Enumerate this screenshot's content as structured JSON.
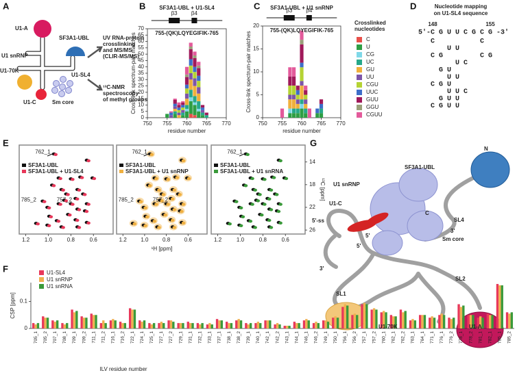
{
  "panel_labels": [
    "A",
    "B",
    "C",
    "D",
    "E",
    "F",
    "G"
  ],
  "panel_a": {
    "labels": [
      "U1-A",
      "U1 snRNP",
      "U1-70K",
      "U1-C",
      "Sm core",
      "SF3A1-UBL",
      "U1-SL4"
    ],
    "method_1": [
      "UV RNA-protein",
      "crosslinking",
      "and MS/MS",
      "(CLIR-MS/MS)"
    ],
    "method_2": [
      "¹³C-NMR",
      "spectroscopy",
      "of methyl groups"
    ]
  },
  "chart_data": [
    {
      "type": "bar",
      "stacked": true,
      "title": "SF3A1-UBL + U1-SL4",
      "annotations": [
        "β3",
        "β4",
        "755-(QK)LQYEGIFIK-765"
      ],
      "x_label": "residue number",
      "y_label": "Cross-link spectrum-pair matches",
      "x": [
        755,
        756,
        757,
        758,
        759,
        760,
        761,
        762,
        763,
        764,
        765
      ],
      "xlim": [
        750,
        770
      ],
      "xticks": [
        750,
        755,
        760,
        765,
        770
      ],
      "ylim": [
        0,
        70
      ],
      "yticks": [
        0,
        5,
        10,
        15,
        20,
        25,
        30,
        35,
        40,
        45,
        50,
        55,
        60,
        65,
        70
      ],
      "series": [
        {
          "color": "#e8504a",
          "values": [
            0,
            0,
            0,
            0,
            0,
            0,
            3,
            2,
            0,
            0,
            0
          ]
        },
        {
          "color": "#2e9e44",
          "values": [
            3,
            0,
            3,
            0,
            2,
            5,
            10,
            8,
            5,
            2,
            0
          ]
        },
        {
          "color": "#7fd8e8",
          "values": [
            0,
            0,
            0,
            0,
            0,
            2,
            3,
            2,
            2,
            0,
            0
          ]
        },
        {
          "color": "#26a88a",
          "values": [
            0,
            0,
            2,
            0,
            2,
            3,
            6,
            5,
            6,
            2,
            2
          ]
        },
        {
          "color": "#f0b03c",
          "values": [
            0,
            0,
            2,
            2,
            0,
            5,
            8,
            8,
            6,
            0,
            0
          ]
        },
        {
          "color": "#7d55a8",
          "values": [
            0,
            2,
            2,
            2,
            2,
            4,
            5,
            6,
            5,
            2,
            0
          ]
        },
        {
          "color": "#b5d334",
          "values": [
            0,
            0,
            0,
            2,
            2,
            4,
            6,
            5,
            5,
            0,
            0
          ]
        },
        {
          "color": "#3d6ec9",
          "values": [
            0,
            2,
            2,
            2,
            2,
            3,
            5,
            4,
            4,
            2,
            0
          ]
        },
        {
          "color": "#a0195a",
          "values": [
            0,
            0,
            3,
            2,
            2,
            6,
            8,
            7,
            6,
            2,
            2
          ]
        },
        {
          "color": "#9aa07a",
          "values": [
            0,
            0,
            0,
            0,
            0,
            2,
            2,
            2,
            2,
            0,
            0
          ]
        },
        {
          "color": "#e35a9b",
          "values": [
            0,
            1,
            1,
            2,
            1,
            6,
            3,
            3,
            3,
            0,
            0
          ]
        }
      ]
    },
    {
      "type": "bar",
      "stacked": true,
      "title": "SF3A1-UBL + U1 snRNP",
      "annotations": [
        "β3",
        "β4",
        "755-(QK)LQYEGIFIK-765"
      ],
      "x_label": "residue number",
      "y_label": "Cross-link spectrum-pair matches",
      "legend_title": [
        "Crosslinked",
        "nucleotides"
      ],
      "x": [
        755,
        756,
        757,
        758,
        759,
        760,
        761,
        762,
        763,
        764,
        765
      ],
      "xlim": [
        750,
        770
      ],
      "xticks": [
        750,
        755,
        760,
        765,
        770
      ],
      "ylim": [
        0,
        20
      ],
      "yticks": [
        0,
        5,
        10,
        15,
        20
      ],
      "series": [
        {
          "name": "C",
          "color": "#e8504a",
          "values": [
            0,
            0,
            0,
            0,
            0,
            0,
            0,
            0,
            0,
            0,
            0
          ]
        },
        {
          "name": "U",
          "color": "#2e9e44",
          "values": [
            0,
            0,
            1,
            1,
            1,
            2,
            1,
            0,
            0,
            1,
            1
          ]
        },
        {
          "name": "CG",
          "color": "#7fd8e8",
          "values": [
            0,
            0,
            1,
            0,
            0,
            1,
            0,
            0,
            0,
            0,
            0
          ]
        },
        {
          "name": "UC",
          "color": "#26a88a",
          "values": [
            0,
            0,
            0,
            1,
            1,
            1,
            1,
            0,
            0,
            0,
            1
          ]
        },
        {
          "name": "GU",
          "color": "#f0b03c",
          "values": [
            0,
            0,
            2,
            2,
            1,
            3,
            1,
            0,
            0,
            0,
            0
          ]
        },
        {
          "name": "UU",
          "color": "#7d55a8",
          "values": [
            0,
            0,
            1,
            1,
            1,
            1,
            1,
            0,
            0,
            0,
            0
          ]
        },
        {
          "name": "CGU",
          "color": "#b5d334",
          "values": [
            0,
            0,
            2,
            2,
            1,
            3,
            1,
            0,
            0,
            0,
            0
          ]
        },
        {
          "name": "UUC",
          "color": "#3d6ec9",
          "values": [
            0,
            0,
            0,
            0,
            1,
            1,
            0,
            0,
            0,
            1,
            1
          ]
        },
        {
          "name": "GUU",
          "color": "#a0195a",
          "values": [
            0,
            0,
            2,
            2,
            1,
            4,
            1,
            0,
            0,
            0,
            1
          ]
        },
        {
          "name": "GGU",
          "color": "#9aa07a",
          "values": [
            0,
            0,
            0,
            0,
            0,
            1,
            0,
            0,
            0,
            0,
            0
          ]
        },
        {
          "name": "CGUU",
          "color": "#e35a9b",
          "values": [
            2,
            0,
            2,
            2,
            0,
            2,
            1,
            2,
            0,
            0,
            0
          ]
        }
      ]
    },
    {
      "type": "bar",
      "stacked": false,
      "x_label": "ILV residue number",
      "y_label": "CSP [ppm]",
      "legend": "upper left",
      "categories": [
        "705_1",
        "705_2",
        "707_1",
        "708_1",
        "709_1",
        "709_2",
        "711_1",
        "711_2",
        "716_1",
        "716_2",
        "722_1",
        "724_1",
        "725_1",
        "727_1",
        "727_2",
        "729_1",
        "731_1",
        "732_1",
        "733_1",
        "737_1",
        "738_1",
        "738_2",
        "739_1",
        "740_1",
        "742_1",
        "742_2",
        "743_1",
        "744_1",
        "746_1",
        "746_2",
        "749_1",
        "750_1",
        "756_1",
        "756_2",
        "757_1",
        "757_2",
        "760_1",
        "762_1",
        "762_2",
        "763_1",
        "764_1",
        "771_1",
        "776_1",
        "776_2",
        "778_1",
        "778_2",
        "781_1",
        "782_1",
        "785_1",
        "785_2"
      ],
      "ylim": [
        0,
        0.17
      ],
      "yticks": [
        0,
        0.1
      ],
      "series": [
        {
          "name": "U1-SL4",
          "color": "#e8385a",
          "values": [
            0.02,
            0.045,
            0.03,
            0.02,
            0.07,
            0.045,
            0.055,
            0.02,
            0.03,
            0.025,
            0.075,
            0.03,
            0.02,
            0.02,
            0.03,
            0.02,
            0.025,
            0.02,
            0.015,
            0.035,
            0.025,
            0.03,
            0.02,
            0.02,
            0.03,
            0.015,
            0.01,
            0.025,
            0.03,
            0.02,
            0.03,
            0.04,
            0.08,
            0.05,
            0.09,
            0.07,
            0.06,
            0.05,
            0.07,
            0.03,
            0.05,
            0.04,
            0.05,
            0.04,
            0.09,
            0.05,
            0.04,
            0.055,
            0.165,
            0.06
          ]
        },
        {
          "name": "U1 snRNP",
          "color": "#f0b050",
          "values": [
            0.015,
            0.04,
            0.025,
            0.015,
            0.06,
            0.04,
            0.05,
            0.03,
            0.035,
            0.02,
            0.07,
            0.025,
            0.015,
            0.025,
            0.03,
            0.02,
            0.02,
            0.015,
            0.02,
            0.03,
            0.02,
            0.035,
            0.015,
            0.025,
            0.03,
            0.02,
            0.01,
            0.02,
            0.035,
            0.025,
            0.03,
            0.045,
            0.09,
            0.055,
            0.095,
            0.075,
            0.065,
            0.045,
            0.06,
            0.035,
            0.05,
            0.045,
            0.055,
            0.035,
            0.08,
            0.05,
            0.045,
            0.05,
            0.16,
            0.055
          ]
        },
        {
          "name": "U1 snRNA",
          "color": "#3a9a3a",
          "values": [
            0.02,
            0.04,
            0.03,
            0.02,
            0.065,
            0.04,
            0.05,
            0.02,
            0.03,
            0.02,
            0.07,
            0.03,
            0.02,
            0.02,
            0.025,
            0.02,
            0.02,
            0.02,
            0.015,
            0.03,
            0.02,
            0.03,
            0.02,
            0.02,
            0.03,
            0.015,
            0.01,
            0.02,
            0.03,
            0.02,
            0.025,
            0.04,
            0.085,
            0.05,
            0.09,
            0.07,
            0.06,
            0.045,
            0.065,
            0.03,
            0.05,
            0.04,
            0.05,
            0.04,
            0.085,
            0.05,
            0.04,
            0.05,
            0.16,
            0.06
          ]
        }
      ]
    }
  ],
  "panel_d": {
    "title": [
      "Nucleotide mapping",
      "on U1-SL4 sequence"
    ],
    "positions": [
      "148",
      "155"
    ],
    "sequence": "5'-C G U U C G C G -3'",
    "rows": [
      {
        "text": "   C           C",
        "color": "#e8504a"
      },
      {
        "text": "       U U",
        "color": "#2e9e44"
      },
      {
        "text": "   C G         C G",
        "color": "#7fd8e8"
      },
      {
        "text": "         U C",
        "color": "#26a88a"
      },
      {
        "text": "     G U",
        "color": "#f0b03c"
      },
      {
        "text": "       U U",
        "color": "#7d55a8"
      },
      {
        "text": "   C G U",
        "color": "#b5d334"
      },
      {
        "text": "       U U C",
        "color": "#3d6ec9"
      },
      {
        "text": "     G U U",
        "color": "#a0195a"
      },
      {
        "text": "   C G U U",
        "color": "#e35a9b"
      }
    ]
  },
  "panel_e": {
    "panels": [
      {
        "color": "#e8385a",
        "legend": [
          "SF3A1-UBL",
          "SF3A1-UBL + U1-SL4"
        ],
        "peak_labels": [
          "762_1",
          "785_2",
          "757_2"
        ],
        "x_ticks": [
          "1.2",
          "1.0",
          "0.8",
          "0.6"
        ]
      },
      {
        "color": "#f0b040",
        "legend": [
          "SF3A1-UBL",
          "SF3A1-UBL + U1 snRNP"
        ],
        "peak_labels": [
          "762_1",
          "785_2",
          "757_2"
        ],
        "x_ticks": [
          "1.2",
          "1.0",
          "0.8",
          "0.6"
        ]
      },
      {
        "color": "#3a9a3a",
        "legend": [
          "SF3A1-UBL",
          "SF3A1-UBL + U1 snRNA"
        ],
        "peak_labels": [
          "762_1"
        ],
        "x_ticks": [
          "1.2",
          "1.0",
          "0.8",
          "0.6"
        ]
      }
    ],
    "y_ticks": [
      "14",
      "18",
      "22",
      "26"
    ],
    "x_label": "¹H [ppm]",
    "y_label": "¹³C [ppm]"
  },
  "panel_g": {
    "labels": [
      "SF3A1-UBL",
      "N",
      "U1 snRNP",
      "U1-C",
      "C",
      "SL4",
      "5'-ss",
      "5'",
      "5'",
      "3'",
      "Sm core",
      "3'",
      "SL2",
      "SL1",
      "U1-70K",
      "U1-A"
    ]
  }
}
